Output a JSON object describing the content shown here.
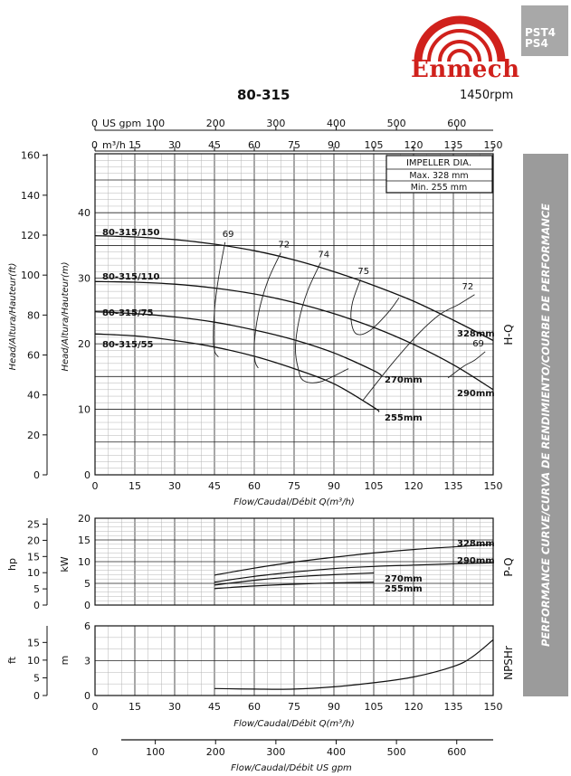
{
  "header": {
    "brand": "Enmech",
    "series": [
      "PST4",
      "PS4"
    ],
    "model": "80-315",
    "speed": "1450rpm",
    "side_title": "PERFORMANCE CURVE/CURVA DE RENDIMIENTO/COURBE DE PERFORMANCE",
    "brand_color": "#d0211c"
  },
  "chart_data": [
    {
      "type": "line",
      "panel": "H-Q",
      "x_top_ticks_usgpm": [
        "0",
        "100",
        "200",
        "300",
        "400",
        "500",
        "600"
      ],
      "x_top_unit_usgpm": "US gpm",
      "x_top_unit_m3h": "m³/h",
      "xlabel": "Flow/Caudal/Débit Q(m³/h)",
      "xlim": [
        0,
        150
      ],
      "x_ticks": [
        0,
        15,
        30,
        45,
        60,
        75,
        90,
        105,
        120,
        135,
        150
      ],
      "ylabel_left_ft": "Head/Altura/Hauteur(ft)",
      "ylabel_left_m": "Head/Altura/Hauteur(m)",
      "yticks_ft": [
        0,
        20,
        40,
        60,
        80,
        100,
        120,
        140,
        160
      ],
      "yticks_m": [
        0,
        10,
        20,
        30,
        40
      ],
      "ylim_m": [
        0,
        49
      ],
      "right_label": "H-Q",
      "impeller_box": {
        "title": "IMPELLER DIA.",
        "max": "Max. 328 mm",
        "min": "Min. 255 mm"
      },
      "series": [
        {
          "name": "80-315/150",
          "right_label": "328mm",
          "x": [
            0,
            15,
            30,
            45,
            60,
            75,
            90,
            105,
            120,
            135,
            150
          ],
          "y": [
            36.5,
            36.3,
            35.9,
            35.2,
            34.2,
            32.8,
            31.0,
            28.9,
            26.5,
            23.6,
            20.5
          ]
        },
        {
          "name": "80-315/110",
          "right_label": "290mm",
          "x": [
            0,
            15,
            30,
            45,
            60,
            75,
            90,
            105,
            120,
            135,
            150
          ],
          "y": [
            29.5,
            29.4,
            29.1,
            28.5,
            27.6,
            26.3,
            24.6,
            22.5,
            19.9,
            16.8,
            13.0
          ]
        },
        {
          "name": "80-315/75",
          "right_label": "270mm",
          "x": [
            0,
            15,
            30,
            45,
            60,
            75,
            90,
            105,
            108
          ],
          "y": [
            24.9,
            24.6,
            24.1,
            23.3,
            22.1,
            20.6,
            18.6,
            15.9,
            15.1
          ]
        },
        {
          "name": "80-315/55",
          "right_label": "255mm",
          "x": [
            0,
            15,
            30,
            45,
            60,
            75,
            90,
            105,
            107
          ],
          "y": [
            21.5,
            21.2,
            20.5,
            19.5,
            18.1,
            16.2,
            13.9,
            10.3,
            9.6
          ]
        }
      ],
      "efficiency_curves": [
        {
          "label": "69",
          "x": [
            49,
            46.5,
            45,
            44.6,
            45.2,
            46.5
          ],
          "y": [
            35.5,
            30.0,
            25.0,
            20.5,
            18.7,
            18.0
          ]
        },
        {
          "label": "72",
          "x": [
            70,
            65,
            61.5,
            60,
            60.3,
            61.5
          ],
          "y": [
            33.9,
            29.5,
            24.5,
            20.0,
            17.3,
            16.3
          ]
        },
        {
          "label": "74",
          "x": [
            85,
            80,
            76.8,
            75.5,
            76.5,
            78.5,
            85,
            95.5
          ],
          "y": [
            32.4,
            28.0,
            23.5,
            19.3,
            16.3,
            14.4,
            14.2,
            16.2
          ]
        },
        {
          "label": "75",
          "x": [
            100,
            97,
            96.5,
            98.5,
            103.5,
            110.5,
            114.5
          ],
          "y": [
            29.8,
            26.3,
            23.5,
            21.5,
            22.0,
            24.8,
            27.0
          ]
        },
        {
          "label": "72",
          "x": [
            101,
            112,
            122,
            130,
            137,
            143
          ],
          "y": [
            11.4,
            17.0,
            21.6,
            24.5,
            26.0,
            27.5
          ]
        },
        {
          "label": "69",
          "x": [
            133,
            139,
            143,
            147
          ],
          "y": [
            14.8,
            16.6,
            17.5,
            18.8
          ]
        }
      ]
    },
    {
      "type": "line",
      "panel": "P-Q",
      "ylabel_left_hp": "hp",
      "ylabel_left_kw": "kW",
      "yticks_hp": [
        0,
        5,
        10,
        15,
        20,
        25
      ],
      "yticks_kw": [
        0,
        5,
        10,
        15,
        20
      ],
      "ylim_kw": [
        0,
        20
      ],
      "xlim": [
        0,
        150
      ],
      "right_label": "P-Q",
      "series": [
        {
          "name": "328mm",
          "x": [
            45,
            60,
            75,
            90,
            105,
            120,
            135,
            150
          ],
          "y": [
            6.9,
            8.5,
            9.9,
            11.0,
            12.0,
            12.8,
            13.4,
            14.0
          ]
        },
        {
          "name": "290mm",
          "x": [
            45,
            60,
            75,
            90,
            105,
            120,
            135,
            150
          ],
          "y": [
            5.3,
            6.6,
            7.6,
            8.4,
            8.9,
            9.2,
            9.5,
            9.7
          ]
        },
        {
          "name": "270mm",
          "x": [
            45,
            60,
            75,
            90,
            105
          ],
          "y": [
            4.6,
            5.7,
            6.5,
            7.0,
            7.4
          ]
        },
        {
          "name": "255mm",
          "x": [
            45,
            60,
            75,
            90,
            105
          ],
          "y": [
            3.8,
            4.4,
            4.8,
            5.1,
            5.3
          ]
        }
      ]
    },
    {
      "type": "line",
      "panel": "NPSHr",
      "ylabel_left_ft": "ft",
      "ylabel_left_m": "m",
      "yticks_ft": [
        0,
        5,
        10,
        15
      ],
      "yticks_m": [
        0,
        3,
        6
      ],
      "ylim_m": [
        0,
        6
      ],
      "xlim": [
        0,
        150
      ],
      "xlabel": "Flow/Caudal/Débit Q(m³/h)",
      "right_label": "NPSHr",
      "series": [
        {
          "name": "NPSHr",
          "x": [
            45,
            60,
            75,
            90,
            105,
            120,
            135,
            142,
            150
          ],
          "y": [
            0.6,
            0.55,
            0.55,
            0.75,
            1.1,
            1.6,
            2.5,
            3.3,
            4.8
          ]
        }
      ]
    }
  ],
  "bottom_axis": {
    "ticks": [
      "0",
      "100",
      "200",
      "300",
      "400",
      "500",
      "600"
    ],
    "label": "Flow/Caudal/Débit US gpm"
  }
}
